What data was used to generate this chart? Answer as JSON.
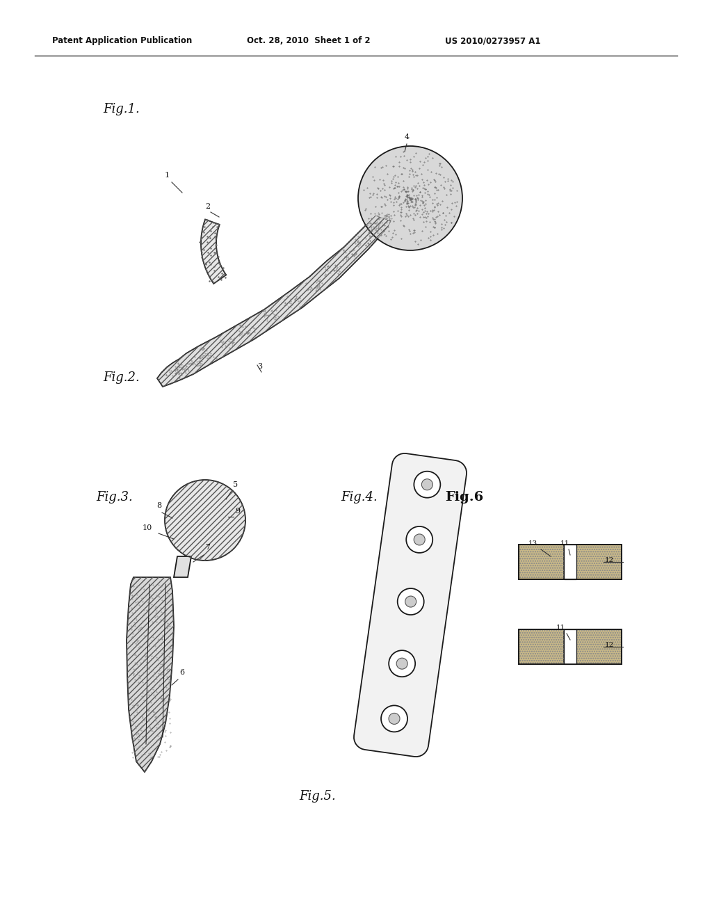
{
  "bg_color": "#ffffff",
  "header_left": "Patent Application Publication",
  "header_mid": "Oct. 28, 2010  Sheet 1 of 2",
  "header_right": "US 2010/0273957 A1",
  "line_color": "#1a1a1a",
  "fig1_label": "Fig.1.",
  "fig2_label": "Fig.2.",
  "fig3_label": "Fig.3.",
  "fig4_label": "Fig.4.",
  "fig5_label": "Fig.5.",
  "fig6_label": "Fig.6"
}
